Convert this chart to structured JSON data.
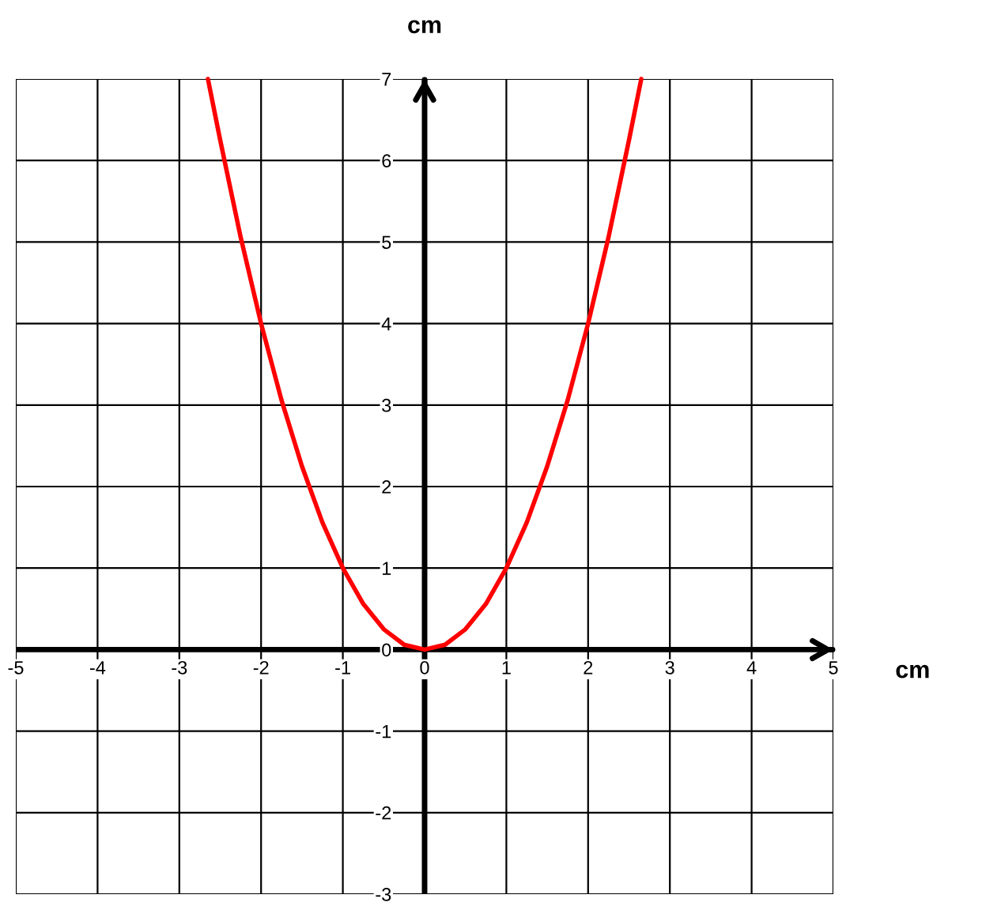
{
  "chart_data": {
    "type": "line",
    "xlabel": "cm",
    "ylabel": "cm",
    "x": [
      -2.65,
      -2.5,
      -2.25,
      -2,
      -1.75,
      -1.5,
      -1.25,
      -1,
      -0.75,
      -0.5,
      -0.25,
      0,
      0.25,
      0.5,
      0.75,
      1,
      1.25,
      1.5,
      1.75,
      2,
      2.25,
      2.5,
      2.65
    ],
    "series": [
      {
        "color": "#ff0000",
        "values": [
          7.0,
          6.25,
          5.06,
          4,
          3.06,
          2.25,
          1.56,
          1,
          0.56,
          0.25,
          0.06,
          0,
          0.06,
          0.25,
          0.56,
          1,
          1.56,
          2.25,
          3.06,
          4,
          5.06,
          6.25,
          7.0
        ]
      }
    ],
    "xlim": [
      -5,
      5
    ],
    "ylim": [
      -3,
      7
    ],
    "xticks": [
      -5,
      -4,
      -3,
      -2,
      -1,
      0,
      1,
      2,
      3,
      4,
      5
    ],
    "yticks": [
      -3,
      -2,
      -1,
      0,
      1,
      2,
      3,
      4,
      5,
      6,
      7
    ],
    "grid": true
  }
}
